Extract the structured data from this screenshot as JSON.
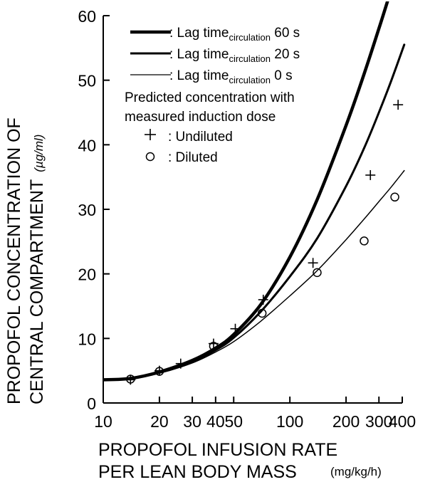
{
  "chart_data": {
    "type": "line",
    "x_scale": "log",
    "xlim": [
      10,
      420
    ],
    "ylim": [
      0,
      60
    ],
    "x_ticks": [
      10,
      20,
      30,
      40,
      50,
      100,
      200,
      300,
      400
    ],
    "y_ticks": [
      0,
      10,
      20,
      30,
      40,
      50,
      60
    ],
    "x_tick_labels": [
      "10",
      "20",
      "30",
      "40",
      "50",
      "100",
      "200",
      "300",
      "400"
    ],
    "y_tick_labels": [
      "0",
      "10",
      "20",
      "30",
      "40",
      "50",
      "60"
    ],
    "xlabel_line1": "PROPOFOL INFUSION RATE",
    "xlabel_line2": "PER LEAN BODY MASS",
    "xlabel_unit": "(mg/kg/h)",
    "ylabel_line1": "PROPOFOL CONCENTRATION OF",
    "ylabel_line2": "CENTRAL COMPARTMENT",
    "ylabel_unit": "(µg/ml)",
    "grid": false,
    "legend_position": "top-left",
    "series": [
      {
        "name": "Lag time circulation 60 s",
        "legend_prefix": ": Lag time",
        "legend_sub": "circulation",
        "legend_suffix": " 60 s",
        "style": "curve",
        "stroke_width": 4.5,
        "x": [
          10,
          14,
          20,
          30,
          40,
          50,
          70,
          100,
          140,
          200,
          250,
          300,
          340
        ],
        "y": [
          3.6,
          3.8,
          4.8,
          6.6,
          8.5,
          10.6,
          15.3,
          22.6,
          31.5,
          43.0,
          51.0,
          58.0,
          63.0
        ]
      },
      {
        "name": "Lag time circulation 20 s",
        "legend_prefix": ": Lag time",
        "legend_sub": "circulation",
        "legend_suffix": " 20 s",
        "style": "curve",
        "stroke_width": 3,
        "x": [
          10,
          14,
          20,
          30,
          40,
          50,
          70,
          100,
          140,
          200,
          250,
          300,
          350,
          410
        ],
        "y": [
          3.6,
          3.8,
          4.7,
          6.4,
          8.2,
          10.1,
          14.2,
          19.6,
          25.5,
          33.6,
          39.5,
          45.0,
          50.0,
          55.5
        ]
      },
      {
        "name": "Lag time circulation 0 s",
        "legend_prefix": ": Lag time",
        "legend_sub": "circulation",
        "legend_suffix": " 0 s",
        "style": "curve",
        "stroke_width": 1.5,
        "x": [
          10,
          14,
          20,
          30,
          40,
          50,
          70,
          100,
          140,
          200,
          250,
          300,
          350,
          410
        ],
        "y": [
          3.6,
          3.8,
          4.6,
          6.2,
          7.9,
          9.5,
          12.7,
          16.6,
          20.5,
          25.3,
          28.5,
          31.2,
          33.5,
          36.0
        ]
      },
      {
        "name": "Undiluted",
        "legend_label": ": Undiluted",
        "style": "plus",
        "x": [
          14,
          20,
          26,
          39,
          51,
          72,
          133,
          270,
          380
        ],
        "y": [
          3.6,
          5.0,
          6.1,
          9.2,
          11.5,
          16.0,
          21.7,
          35.3,
          46.2
        ]
      },
      {
        "name": "Diluted",
        "legend_label": ": Diluted",
        "style": "circle",
        "x": [
          14,
          20,
          39,
          71,
          140,
          250,
          365
        ],
        "y": [
          3.7,
          4.9,
          8.8,
          13.9,
          20.2,
          25.1,
          31.9
        ]
      }
    ],
    "legend_note_line1": "Predicted concentration with",
    "legend_note_line2": "measured induction dose"
  }
}
